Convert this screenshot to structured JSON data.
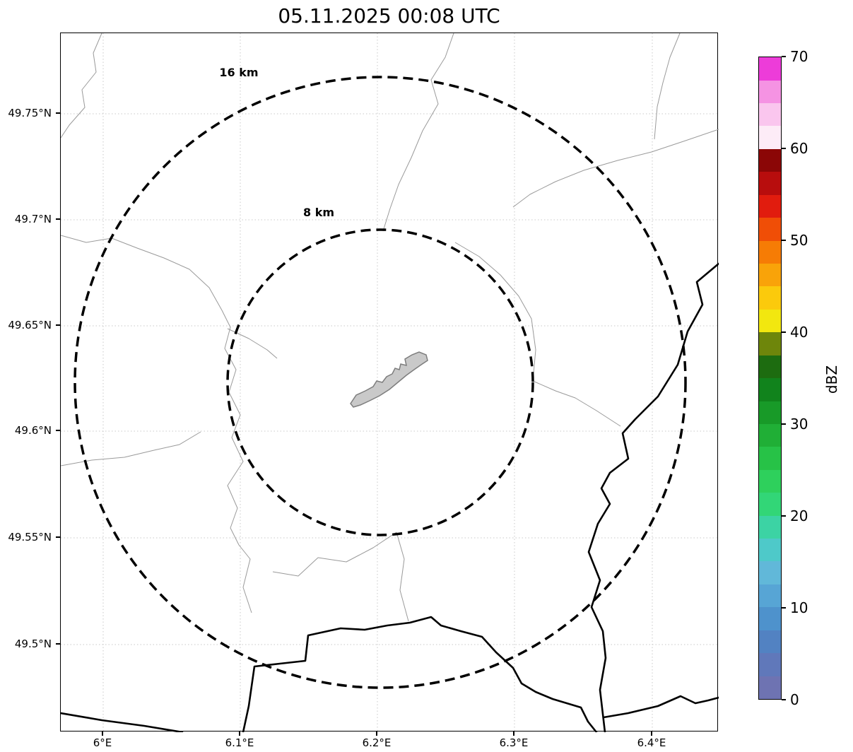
{
  "title": "05.11.2025 00:08 UTC",
  "map": {
    "x_ticks": [
      "6°E",
      "6.1°E",
      "6.2°E",
      "6.3°E",
      "6.4°E"
    ],
    "y_ticks": [
      "49.75°N",
      "49.7°N",
      "49.65°N",
      "49.6°N",
      "49.55°N",
      "49.5°N"
    ],
    "range_rings": [
      {
        "label": "16 km",
        "radius_km": 16
      },
      {
        "label": "8 km",
        "radius_km": 8
      }
    ]
  },
  "colorbar": {
    "label": "dBZ",
    "ticks": [
      0,
      10,
      20,
      30,
      40,
      50,
      60,
      70
    ],
    "colors_bottom_to_top": [
      "#6e73b2",
      "#6078ba",
      "#5282c2",
      "#4e92cc",
      "#57a5d5",
      "#61b8d9",
      "#4ec9c9",
      "#3cd3a4",
      "#32d677",
      "#2ed05c",
      "#27c247",
      "#20af36",
      "#189a28",
      "#11831c",
      "#1d6c10",
      "#6e860b",
      "#f2e70f",
      "#fbca0c",
      "#f9a309",
      "#f67c05",
      "#f04e06",
      "#e11c0e",
      "#b80d0d",
      "#8b0606",
      "#fdecf7",
      "#fac6ee",
      "#f593e3",
      "#ed3cd9"
    ]
  },
  "chart_data": {
    "type": "map",
    "title": "05.11.2025 00:08 UTC",
    "description": "Weather radar reflectivity map with range rings; no radar echoes visible",
    "x_axis": {
      "ticks": [
        "6°E",
        "6.1°E",
        "6.2°E",
        "6.3°E",
        "6.4°E"
      ],
      "range_deg_e": [
        5.97,
        6.45
      ]
    },
    "y_axis": {
      "ticks": [
        "49.75°N",
        "49.7°N",
        "49.65°N",
        "49.6°N",
        "49.55°N",
        "49.5°N"
      ],
      "range_deg_n": [
        49.46,
        49.79
      ]
    },
    "colorbar": {
      "label": "dBZ",
      "min": 0,
      "max": 70,
      "ticks": [
        0,
        10,
        20,
        30,
        40,
        50,
        60,
        70
      ]
    },
    "range_rings_km": [
      8,
      16
    ],
    "ring_center": {
      "lon": "6.2°E",
      "lat": "49.62°N"
    },
    "radar_echoes": "none"
  }
}
